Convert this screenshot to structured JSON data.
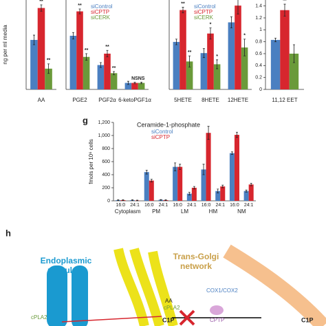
{
  "chart_data": [
    {
      "type": "bar",
      "y_label": "ng per ml media",
      "categories": [
        "AA"
      ],
      "ylim": [
        0,
        0.28
      ],
      "series": [
        {
          "color": "#4a7fc1",
          "values": [
            0.155
          ],
          "errors": [
            0.015
          ]
        },
        {
          "color": "#d7262e",
          "values": [
            0.255
          ],
          "errors": [
            0.01
          ]
        },
        {
          "color": "#6a9a3a",
          "values": [
            0.065
          ],
          "errors": [
            0.015
          ]
        }
      ],
      "annotations": [
        "**",
        "**"
      ]
    },
    {
      "type": "bar",
      "categories": [
        "PGE2",
        "PGF2α",
        "6-ketoPGF1α"
      ],
      "ylim": [
        0,
        0.55
      ],
      "series": [
        {
          "name": "siControl",
          "color": "#4a7fc1",
          "values": [
            0.33,
            0.15,
            0.04
          ],
          "errors": [
            0.02,
            0.015,
            0.01
          ]
        },
        {
          "name": "siCPTP",
          "color": "#d7262e",
          "values": [
            0.48,
            0.22,
            0.04
          ],
          "errors": [
            0.015,
            0.02,
            0.005
          ]
        },
        {
          "name": "siCERK",
          "color": "#6a9a3a",
          "values": [
            0.2,
            0.1,
            0.04
          ],
          "errors": [
            0.02,
            0.01,
            0.005
          ]
        }
      ],
      "annotations": [
        "**",
        "**",
        "**",
        "**",
        "NS",
        "NS"
      ]
    },
    {
      "type": "bar",
      "categories": [
        "5HETE",
        "8HETE",
        "12HETE"
      ],
      "ylim": [
        0,
        1.6
      ],
      "series": [
        {
          "name": "siControl",
          "color": "#4a7fc1",
          "values": [
            0.85,
            0.65,
            1.2
          ],
          "errors": [
            0.05,
            0.08,
            0.1
          ]
        },
        {
          "name": "siCPTP",
          "color": "#d7262e",
          "values": [
            1.42,
            1.0,
            1.5
          ],
          "errors": [
            0.05,
            0.1,
            0.15
          ]
        },
        {
          "name": "siCERK",
          "color": "#6a9a3a",
          "values": [
            0.5,
            0.45,
            0.75
          ],
          "errors": [
            0.1,
            0.08,
            0.15
          ]
        }
      ],
      "annotations": [
        "**",
        "**",
        "*",
        "*",
        "**",
        "*"
      ]
    },
    {
      "type": "bar",
      "categories": [
        "11,12 EET"
      ],
      "ylim": [
        0,
        1.5
      ],
      "yticks": [
        0,
        0.2,
        0.4,
        0.6,
        0.8,
        1,
        1.2,
        1.4
      ],
      "series": [
        {
          "color": "#4a7fc1",
          "values": [
            0.83
          ],
          "errors": [
            0.03
          ]
        },
        {
          "color": "#d7262e",
          "values": [
            1.33
          ],
          "errors": [
            0.1
          ]
        },
        {
          "color": "#6a9a3a",
          "values": [
            0.6
          ],
          "errors": [
            0.15
          ]
        }
      ],
      "annotations": [
        "**"
      ]
    },
    {
      "type": "bar",
      "panel": "g",
      "title": "Ceramide-1-phosphate",
      "y_label": "fmols per 10⁶ cells",
      "categories": [
        "16:0",
        "24:1",
        "16:0",
        "24:1",
        "16:0",
        "24:1",
        "16:0",
        "24:1",
        "16:0",
        "24:1"
      ],
      "groups": [
        "Cytoplasm",
        "PM",
        "LM",
        "HM",
        "NM"
      ],
      "ylim": [
        0,
        1200
      ],
      "yticks": [
        0,
        200,
        400,
        600,
        800,
        {
          "value": 1000,
          "label": "1,000"
        },
        {
          "value": 1200,
          "label": "1,200"
        }
      ],
      "series": [
        {
          "name": "siControl",
          "color": "#4a7fc1",
          "values": [
            10,
            10,
            440,
            15,
            520,
            110,
            480,
            150,
            730,
            150
          ],
          "errors": [
            5,
            5,
            30,
            5,
            60,
            20,
            80,
            30,
            20,
            15
          ]
        },
        {
          "name": "siCPTP",
          "color": "#d7262e",
          "values": [
            10,
            5,
            310,
            10,
            520,
            200,
            1040,
            220,
            1010,
            250
          ],
          "errors": [
            5,
            5,
            20,
            5,
            40,
            20,
            100,
            20,
            40,
            20
          ]
        }
      ]
    }
  ],
  "diagram": {
    "panel": "h",
    "er": [
      "Endoplasmic",
      "reticulum"
    ],
    "golgi": [
      "Trans-Golgi",
      "network"
    ],
    "labels": [
      "COX1/COX2",
      "AA",
      "cPLA2",
      "C1P",
      "CPTP",
      "C1P",
      "cPLA2"
    ]
  }
}
